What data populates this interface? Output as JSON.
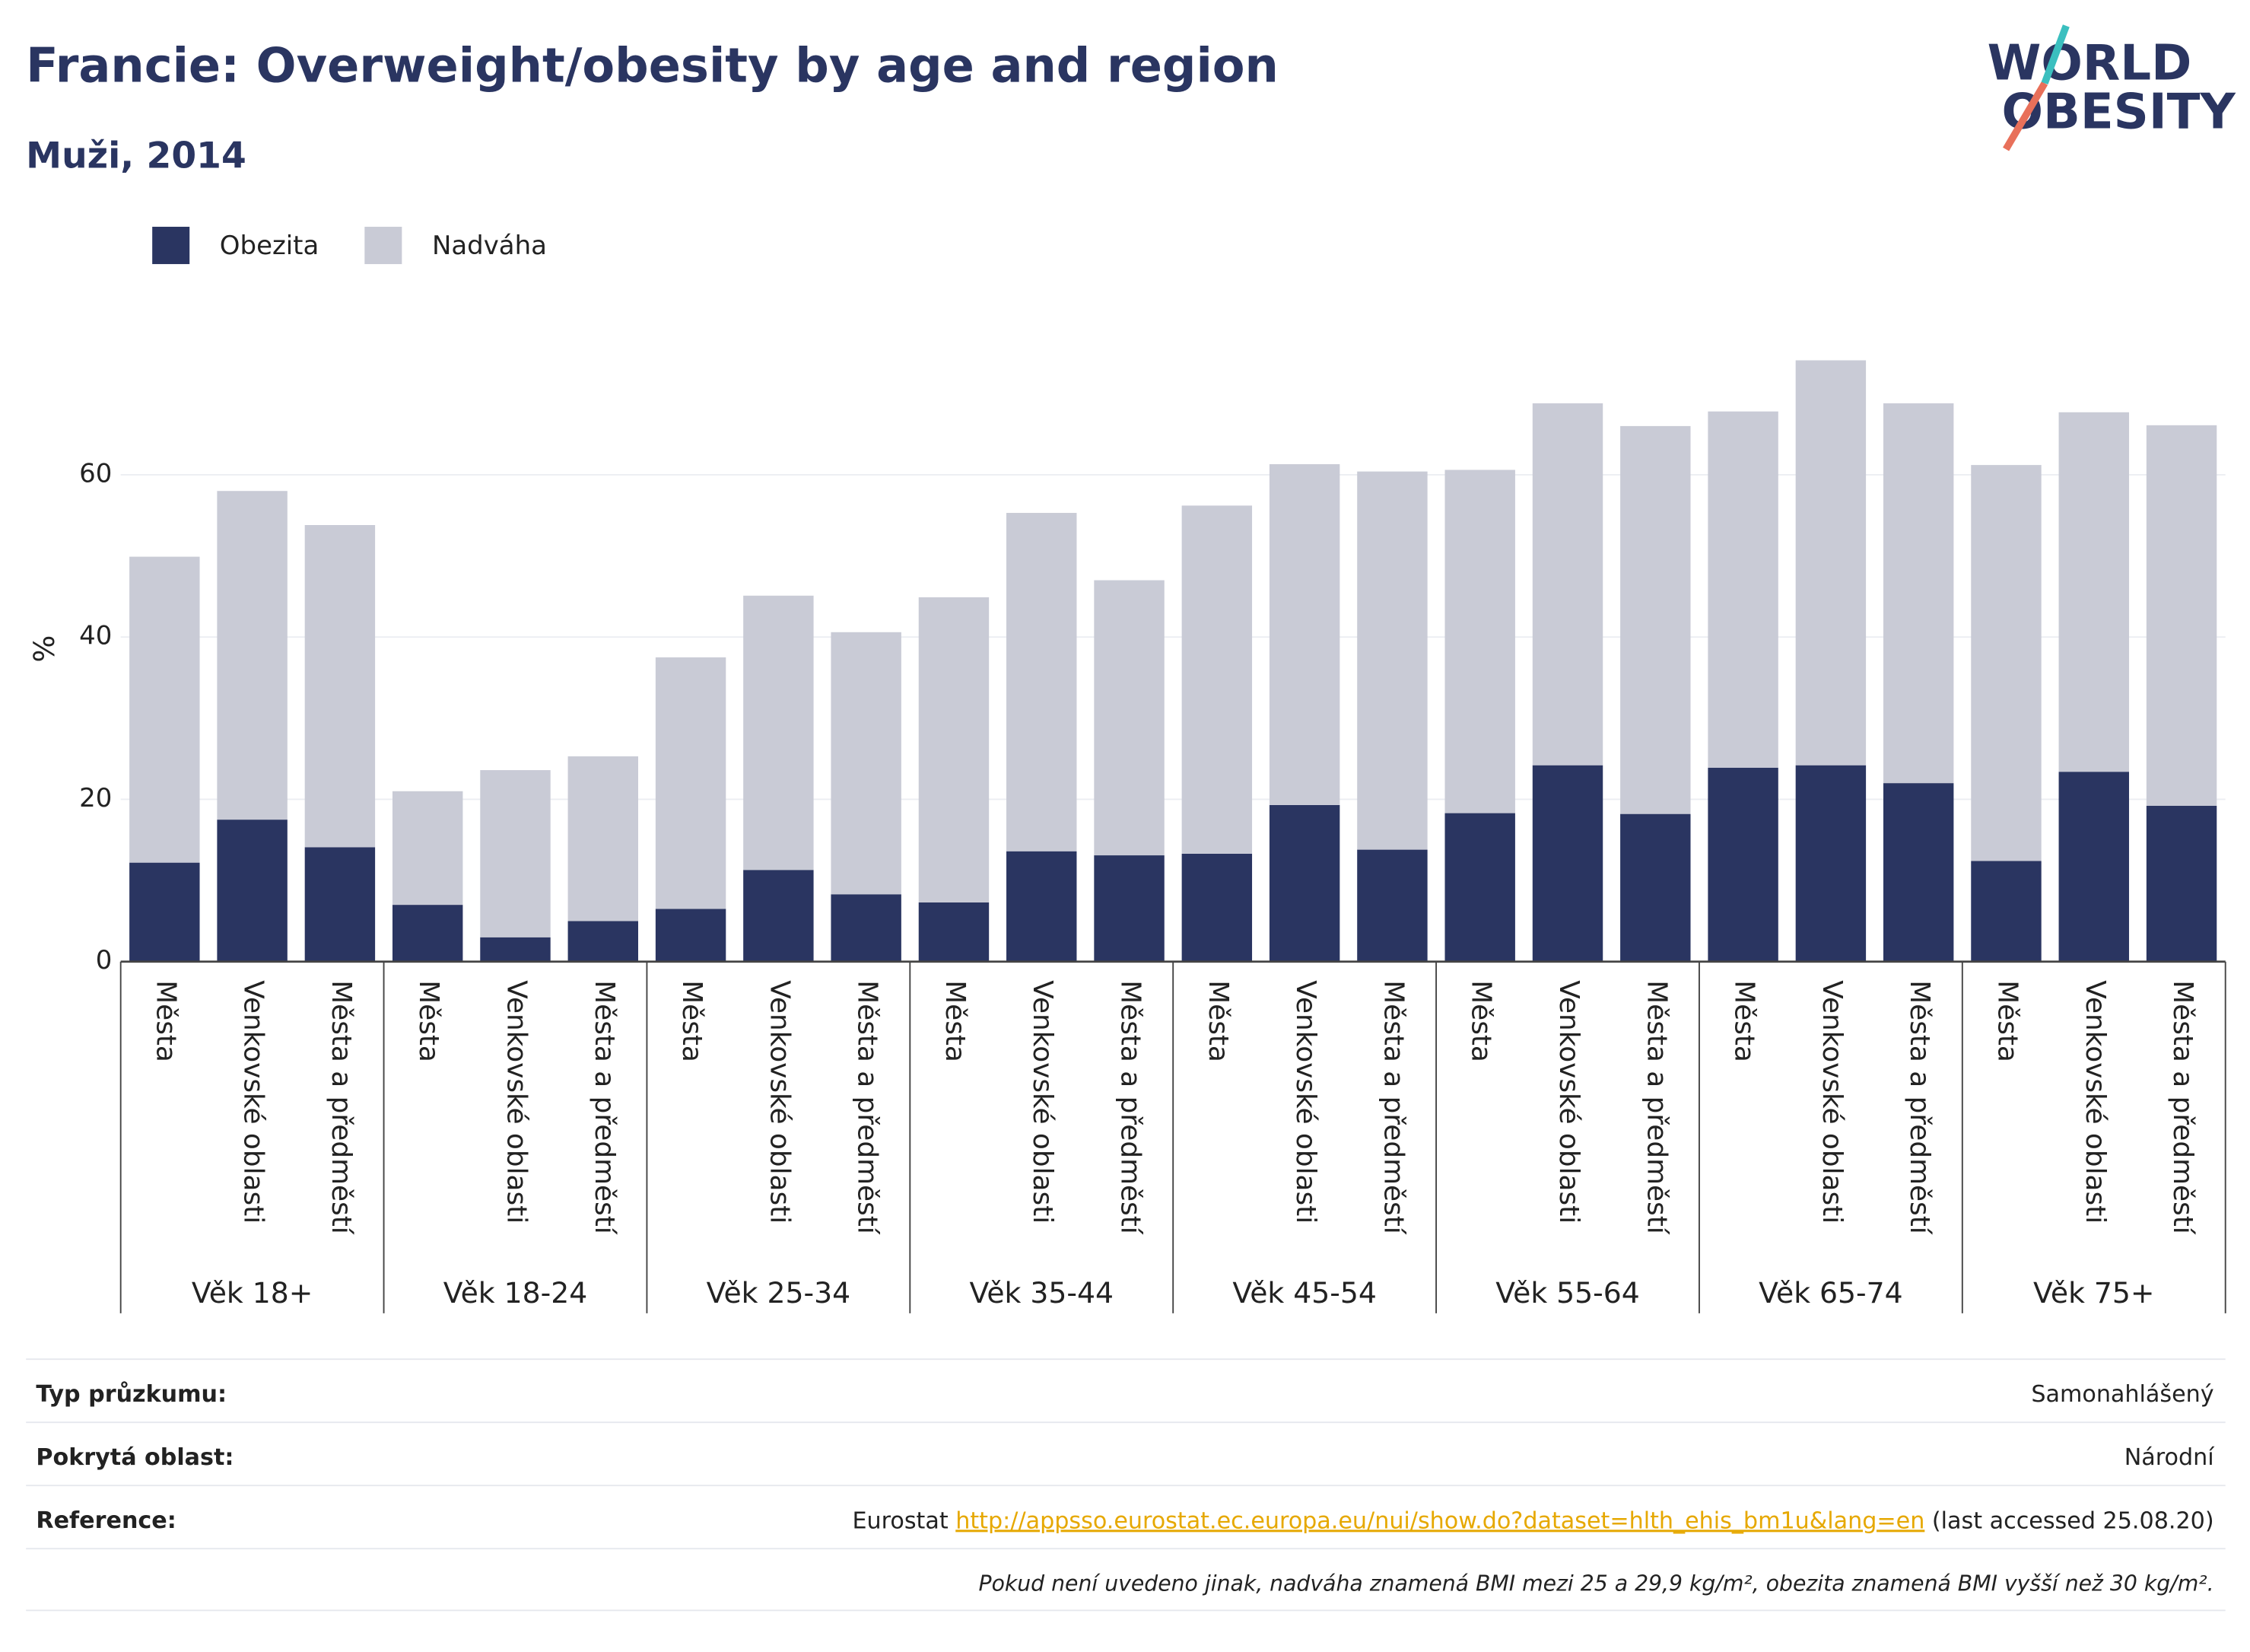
{
  "chart_data": {
    "type": "stacked_bar",
    "title": "Francie: Overweight/obesity by age and region",
    "subtitle": "Muži, 2014",
    "y_label": "%",
    "groups": [
      "Věk 18+",
      "Věk 18-24",
      "Věk 25-34",
      "Věk 35-44",
      "Věk 45-54",
      "Věk 55-64",
      "Věk 65-74",
      "Věk 75+"
    ],
    "categories": [
      "Města",
      "Venkovské oblasti",
      "Města a předměstí",
      "Města",
      "Venkovské oblasti",
      "Města a předměstí",
      "Města",
      "Venkovské oblasti",
      "Města a předměstí",
      "Města",
      "Venkovské oblasti",
      "Města a předměstí",
      "Města",
      "Venkovské oblasti",
      "Města a předměstí",
      "Města",
      "Venkovské oblasti",
      "Města a předměstí",
      "Města",
      "Venkovské oblasti",
      "Města a předměstí",
      "Města",
      "Venkovské oblasti",
      "Města a předměstí"
    ],
    "series": [
      {
        "name": "Obezita",
        "color": "#2a3561",
        "values": [
          12.2,
          17.5,
          14.1,
          7,
          3,
          5,
          6.5,
          11.3,
          8.3,
          7.3,
          13.6,
          13.1,
          13.3,
          19.3,
          13.8,
          18.3,
          24.2,
          18.2,
          23.9,
          24.2,
          22,
          12.4,
          23.4,
          19.2
        ]
      },
      {
        "name": "Nadváha",
        "color": "#c9cbd6",
        "values": [
          37.7,
          40.5,
          39.7,
          14,
          20.6,
          20.3,
          31,
          33.8,
          32.3,
          37.6,
          41.7,
          33.9,
          42.9,
          42,
          46.6,
          42.3,
          44.6,
          47.8,
          43.9,
          49.9,
          46.8,
          48.8,
          44.3,
          46.9
        ]
      }
    ],
    "ylim": [
      0,
      78
    ],
    "yticks": [
      0,
      20,
      40,
      60
    ],
    "grid": true
  },
  "logo": {
    "line1": "WORLD",
    "line2": "OBESITY"
  },
  "table": {
    "rows": [
      {
        "label": "Typ průzkumu:",
        "value": "Samonahlášený"
      },
      {
        "label": "Pokrytá oblast:",
        "value": "Národní"
      },
      {
        "label": "Reference:",
        "value": [
          "Eurostat ",
          "http://appsso.eurostat.ec.europa.eu/nui/show.do?dataset=hlth_ehis_bm1u&lang=en",
          " (last accessed 25.08.20)"
        ]
      }
    ],
    "note": "Pokud není uvedeno jinak, nadváha znamená BMI mezi 25 a 29,9 kg/m², obezita znamená BMI vyšší než 30 kg/m²."
  }
}
